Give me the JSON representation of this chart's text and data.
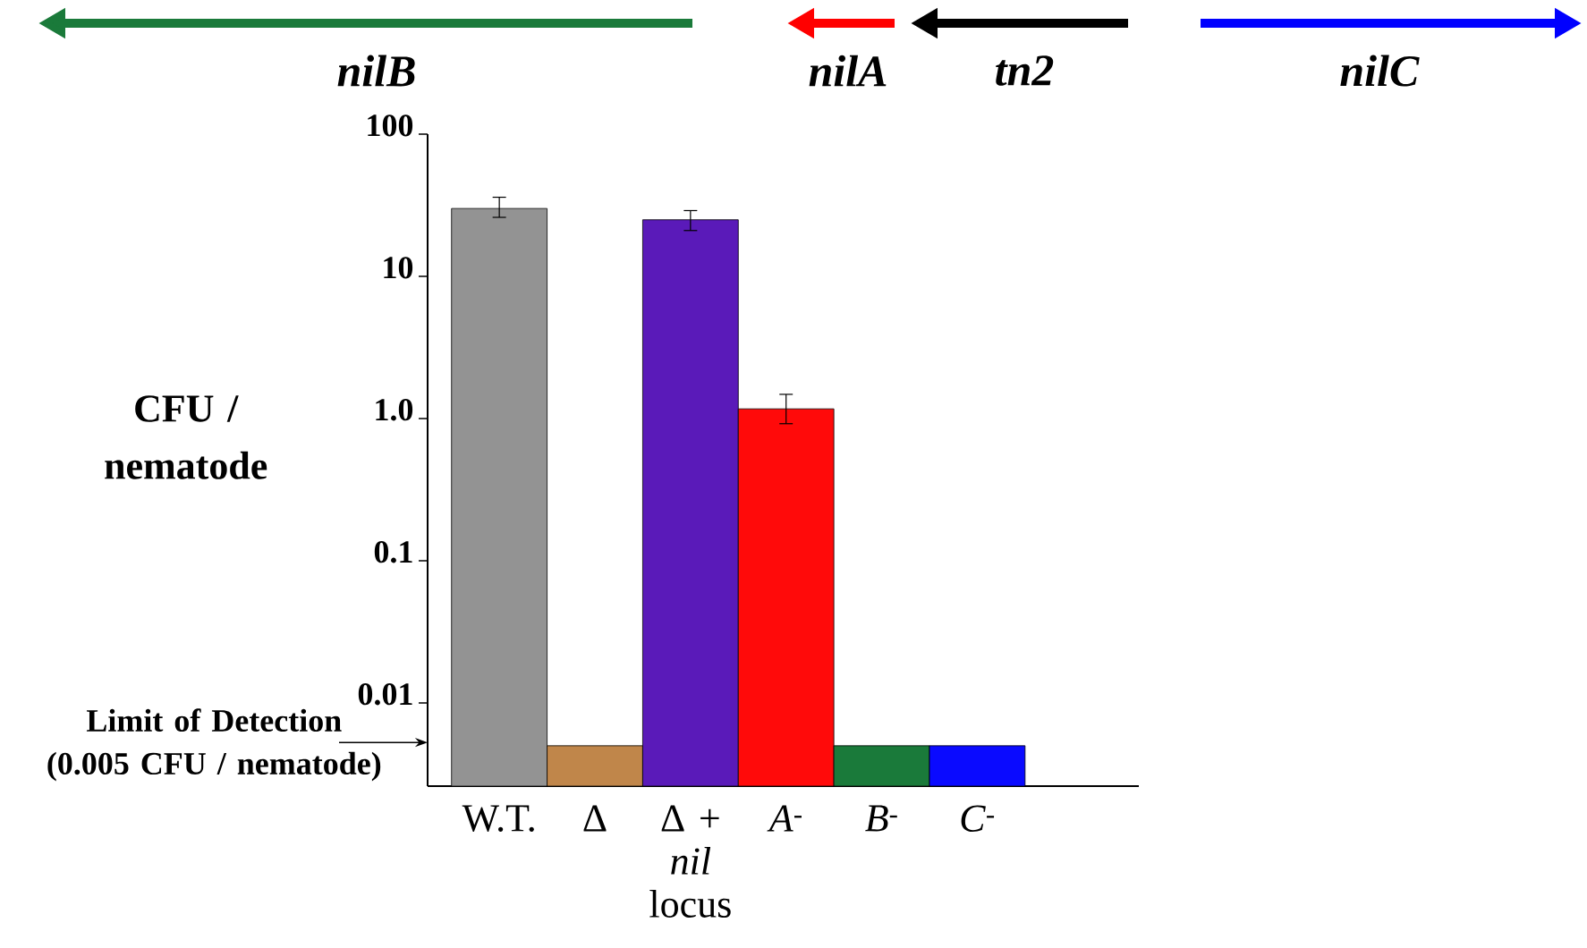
{
  "chart_data": {
    "type": "bar",
    "ylabel": "CFU / nematode",
    "log": true,
    "categories": [
      "W.T.",
      "Δ",
      "Δ + *nil* locus",
      "*A*$^{-}$",
      "*B*$^{-}$",
      "*C*$^{-}$"
    ],
    "values": [
      30,
      0.005,
      25,
      1.17,
      0.005,
      0.005
    ],
    "errors": [
      [
        26,
        36
      ],
      null,
      [
        21,
        29
      ],
      [
        0.92,
        1.48
      ],
      null,
      null
    ],
    "colors": [
      "#939393",
      "#c0864a",
      "#5a1ab9",
      "#ff0a0a",
      "#1a7a3a",
      "#0a0aff"
    ],
    "ylim": [
      0.0026,
      100
    ],
    "yticks": [
      {
        "value": 0.01,
        "label": "0.01"
      },
      {
        "value": 0.1,
        "label": "0.1"
      },
      {
        "value": 1,
        "label": "1.0"
      },
      {
        "value": 10,
        "label": "10"
      },
      {
        "value": 100,
        "label": "100"
      }
    ],
    "annotations": [
      "*nilB*",
      "*nilA*",
      "*tn2*",
      "*nilC*",
      "Limit of Detection (0.005 CFU / nematode)"
    ]
  }
}
